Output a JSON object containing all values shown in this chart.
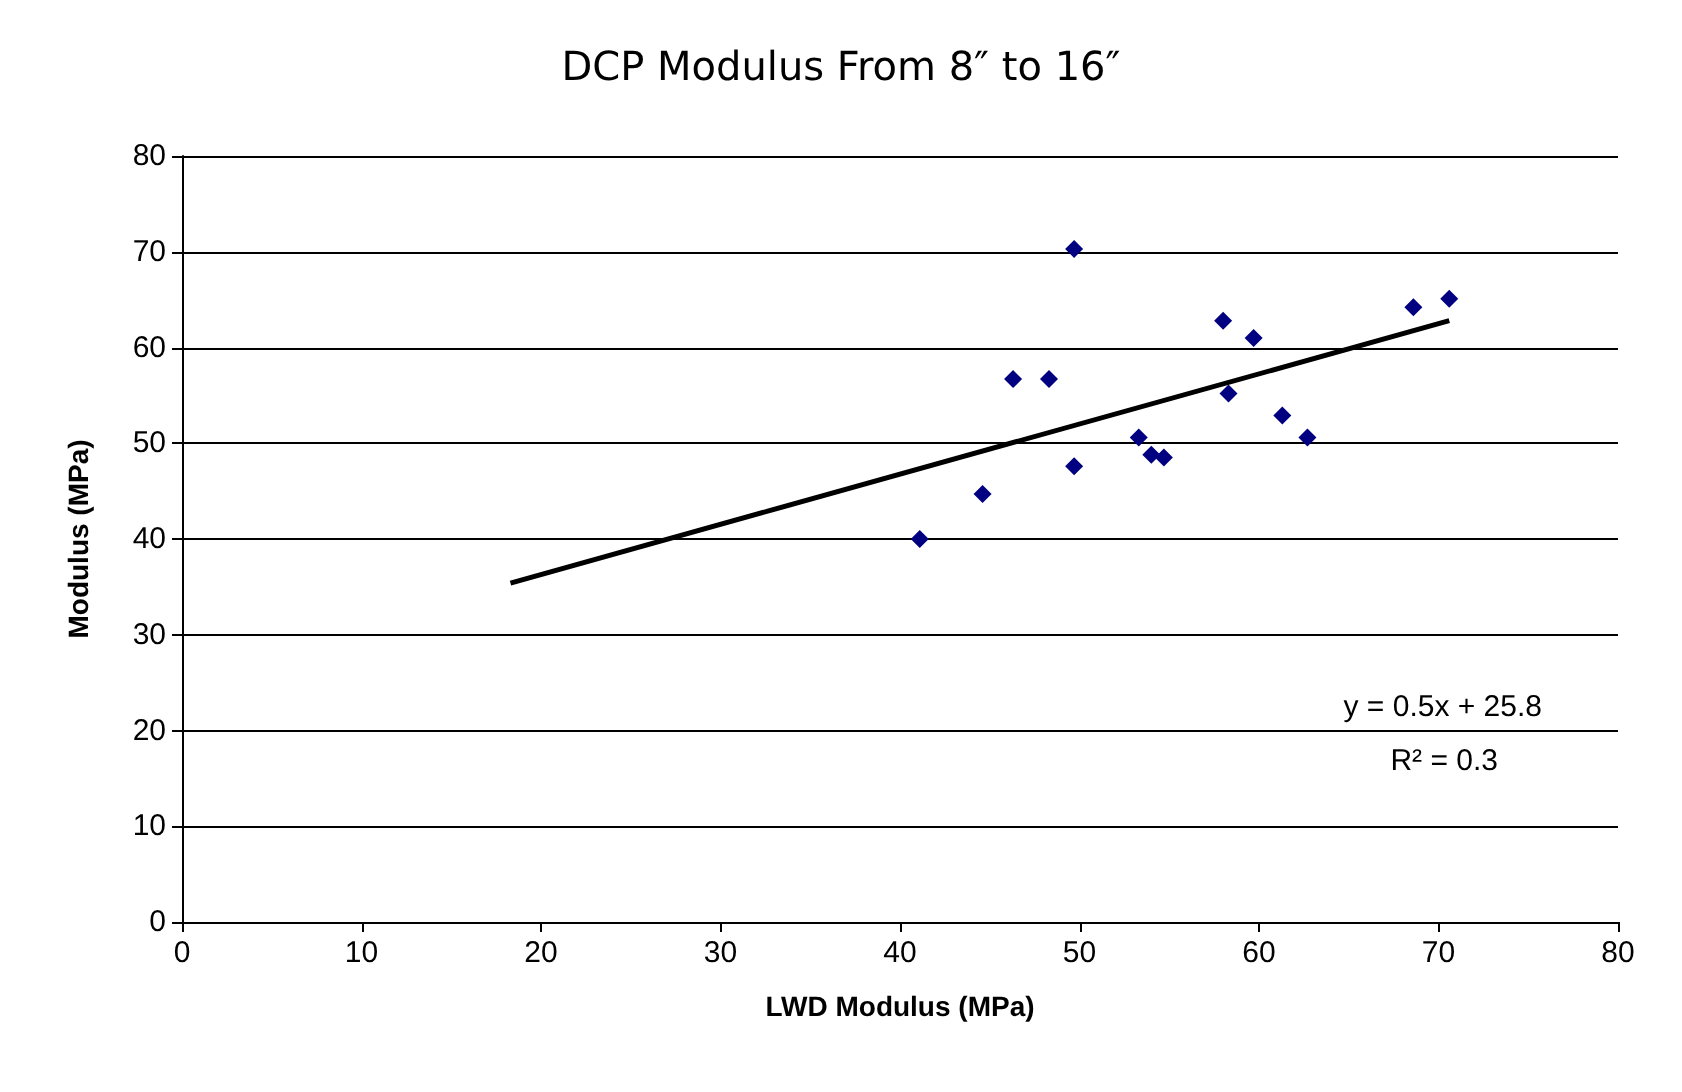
{
  "chart_data": {
    "type": "scatter",
    "title": "DCP Modulus From 8″ to 16″",
    "xlabel": "LWD Modulus (MPa)",
    "ylabel": "Modulus (MPa)",
    "xlim": [
      0,
      80
    ],
    "xticks": [
      0,
      10,
      20,
      30,
      40,
      50,
      60,
      70,
      80
    ],
    "ylim": [
      0,
      80
    ],
    "yticks": [
      0,
      10,
      20,
      30,
      40,
      50,
      60,
      70,
      80
    ],
    "grid": "y",
    "marker": "diamond",
    "series": [
      {
        "color": "#000080",
        "x": [
          41.1,
          44.6,
          46.3,
          48.3,
          49.7,
          49.7,
          53.3,
          54,
          54.7,
          58,
          58.3,
          59.7,
          61.3,
          62.7,
          68.6,
          70.6
        ],
        "values": [
          40,
          44.7,
          56.7,
          56.7,
          70.3,
          47.6,
          50.6,
          48.8,
          48.5,
          62.8,
          55.2,
          61,
          52.9,
          50.6,
          64.2,
          65.1
        ]
      },
      {
        "type": "line",
        "color": "#000000",
        "marker": "none",
        "x": [
          18.3,
          70.6
        ],
        "values": [
          35.4,
          62.8
        ]
      }
    ],
    "annotations": [
      "y = 0.5x + 25.8",
      "R² = 0.3"
    ]
  }
}
